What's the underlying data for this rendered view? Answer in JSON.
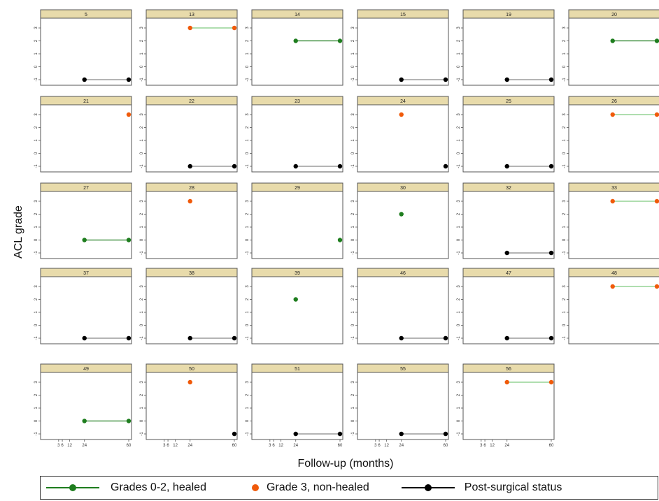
{
  "chart_data": {
    "type": "line",
    "xlabel": "Follow-up (months)",
    "ylabel": "ACL grade",
    "xlim": [
      -6,
      60
    ],
    "ylim": [
      -1,
      3
    ],
    "x_ticks": [
      3,
      6,
      12,
      24,
      60
    ],
    "x_tick_labels": [
      "3",
      "6",
      "12",
      "24",
      "60"
    ],
    "y_ticks": [
      -1,
      0,
      1,
      2,
      3
    ],
    "y_tick_labels": [
      "-1",
      "0",
      "1",
      "2",
      "3"
    ],
    "legend": {
      "placement": "bottom",
      "entries": [
        {
          "label": "Grades 0-2, healed",
          "color": "#1e7d1e",
          "kind": "healed"
        },
        {
          "label": "Grade 3, non-healed",
          "color": "#f05a0a",
          "kind": "nonhealed"
        },
        {
          "label": "Post-surgical status",
          "color": "#000000",
          "kind": "post"
        }
      ]
    },
    "panels": [
      {
        "title": "5",
        "segments": [
          {
            "kind": "post",
            "points": [
              [
                24,
                -1
              ],
              [
                60,
                -1
              ]
            ]
          }
        ]
      },
      {
        "title": "13",
        "segments": [
          {
            "kind": "nonhealed",
            "points": [
              [
                24,
                3
              ],
              [
                60,
                3
              ]
            ]
          }
        ]
      },
      {
        "title": "14",
        "segments": [
          {
            "kind": "healed",
            "points": [
              [
                24,
                2
              ],
              [
                60,
                2
              ]
            ]
          }
        ]
      },
      {
        "title": "15",
        "segments": [
          {
            "kind": "post",
            "points": [
              [
                24,
                -1
              ],
              [
                60,
                -1
              ]
            ]
          }
        ]
      },
      {
        "title": "19",
        "segments": [
          {
            "kind": "post",
            "points": [
              [
                24,
                -1
              ],
              [
                60,
                -1
              ]
            ]
          }
        ]
      },
      {
        "title": "20",
        "segments": [
          {
            "kind": "healed",
            "points": [
              [
                24,
                2
              ],
              [
                60,
                2
              ]
            ]
          }
        ]
      },
      {
        "title": "21",
        "segments": [
          {
            "kind": "nonhealed",
            "points": [
              [
                60,
                3
              ]
            ]
          }
        ]
      },
      {
        "title": "22",
        "segments": [
          {
            "kind": "post",
            "points": [
              [
                24,
                -1
              ],
              [
                60,
                -1
              ]
            ]
          }
        ]
      },
      {
        "title": "23",
        "segments": [
          {
            "kind": "post",
            "points": [
              [
                24,
                -1
              ],
              [
                60,
                -1
              ]
            ]
          }
        ]
      },
      {
        "title": "24",
        "segments": [
          {
            "kind": "nonhealed",
            "points": [
              [
                24,
                3
              ]
            ]
          },
          {
            "kind": "post",
            "points": [
              [
                60,
                -1
              ]
            ]
          }
        ]
      },
      {
        "title": "25",
        "segments": [
          {
            "kind": "post",
            "points": [
              [
                24,
                -1
              ],
              [
                60,
                -1
              ]
            ]
          }
        ]
      },
      {
        "title": "26",
        "segments": [
          {
            "kind": "nonhealed",
            "points": [
              [
                24,
                3
              ],
              [
                60,
                3
              ]
            ]
          }
        ]
      },
      {
        "title": "27",
        "segments": [
          {
            "kind": "healed",
            "points": [
              [
                24,
                0
              ],
              [
                60,
                0
              ]
            ]
          }
        ]
      },
      {
        "title": "28",
        "segments": [
          {
            "kind": "nonhealed",
            "points": [
              [
                24,
                3
              ]
            ]
          }
        ]
      },
      {
        "title": "29",
        "segments": [
          {
            "kind": "healed",
            "points": [
              [
                60,
                0
              ]
            ]
          }
        ]
      },
      {
        "title": "30",
        "segments": [
          {
            "kind": "healed",
            "points": [
              [
                24,
                2
              ]
            ]
          }
        ]
      },
      {
        "title": "32",
        "segments": [
          {
            "kind": "post",
            "points": [
              [
                24,
                -1
              ],
              [
                60,
                -1
              ]
            ]
          }
        ]
      },
      {
        "title": "33",
        "segments": [
          {
            "kind": "nonhealed",
            "points": [
              [
                24,
                3
              ],
              [
                60,
                3
              ]
            ]
          }
        ]
      },
      {
        "title": "37",
        "segments": [
          {
            "kind": "post",
            "points": [
              [
                24,
                -1
              ],
              [
                60,
                -1
              ]
            ]
          }
        ]
      },
      {
        "title": "38",
        "segments": [
          {
            "kind": "post",
            "points": [
              [
                24,
                -1
              ],
              [
                60,
                -1
              ]
            ]
          }
        ]
      },
      {
        "title": "39",
        "segments": [
          {
            "kind": "healed",
            "points": [
              [
                24,
                2
              ]
            ]
          }
        ]
      },
      {
        "title": "46",
        "segments": [
          {
            "kind": "post",
            "points": [
              [
                24,
                -1
              ],
              [
                60,
                -1
              ]
            ]
          }
        ]
      },
      {
        "title": "47",
        "segments": [
          {
            "kind": "post",
            "points": [
              [
                24,
                -1
              ],
              [
                60,
                -1
              ]
            ]
          }
        ]
      },
      {
        "title": "48",
        "segments": [
          {
            "kind": "nonhealed",
            "points": [
              [
                24,
                3
              ],
              [
                60,
                3
              ]
            ]
          }
        ]
      },
      {
        "title": "49",
        "segments": [
          {
            "kind": "healed",
            "points": [
              [
                24,
                0
              ],
              [
                60,
                0
              ]
            ]
          }
        ]
      },
      {
        "title": "50",
        "segments": [
          {
            "kind": "nonhealed",
            "points": [
              [
                24,
                3
              ]
            ]
          },
          {
            "kind": "post",
            "points": [
              [
                60,
                -1
              ]
            ]
          }
        ]
      },
      {
        "title": "51",
        "segments": [
          {
            "kind": "post",
            "points": [
              [
                24,
                -1
              ],
              [
                60,
                -1
              ]
            ]
          }
        ]
      },
      {
        "title": "55",
        "segments": [
          {
            "kind": "post",
            "points": [
              [
                24,
                -1
              ],
              [
                60,
                -1
              ]
            ]
          }
        ]
      },
      {
        "title": "56",
        "segments": [
          {
            "kind": "nonhealed",
            "points": [
              [
                24,
                3
              ],
              [
                60,
                3
              ]
            ]
          }
        ]
      }
    ],
    "xaxis_panels": [
      "45",
      "49",
      "50",
      "51",
      "55",
      "56"
    ]
  }
}
